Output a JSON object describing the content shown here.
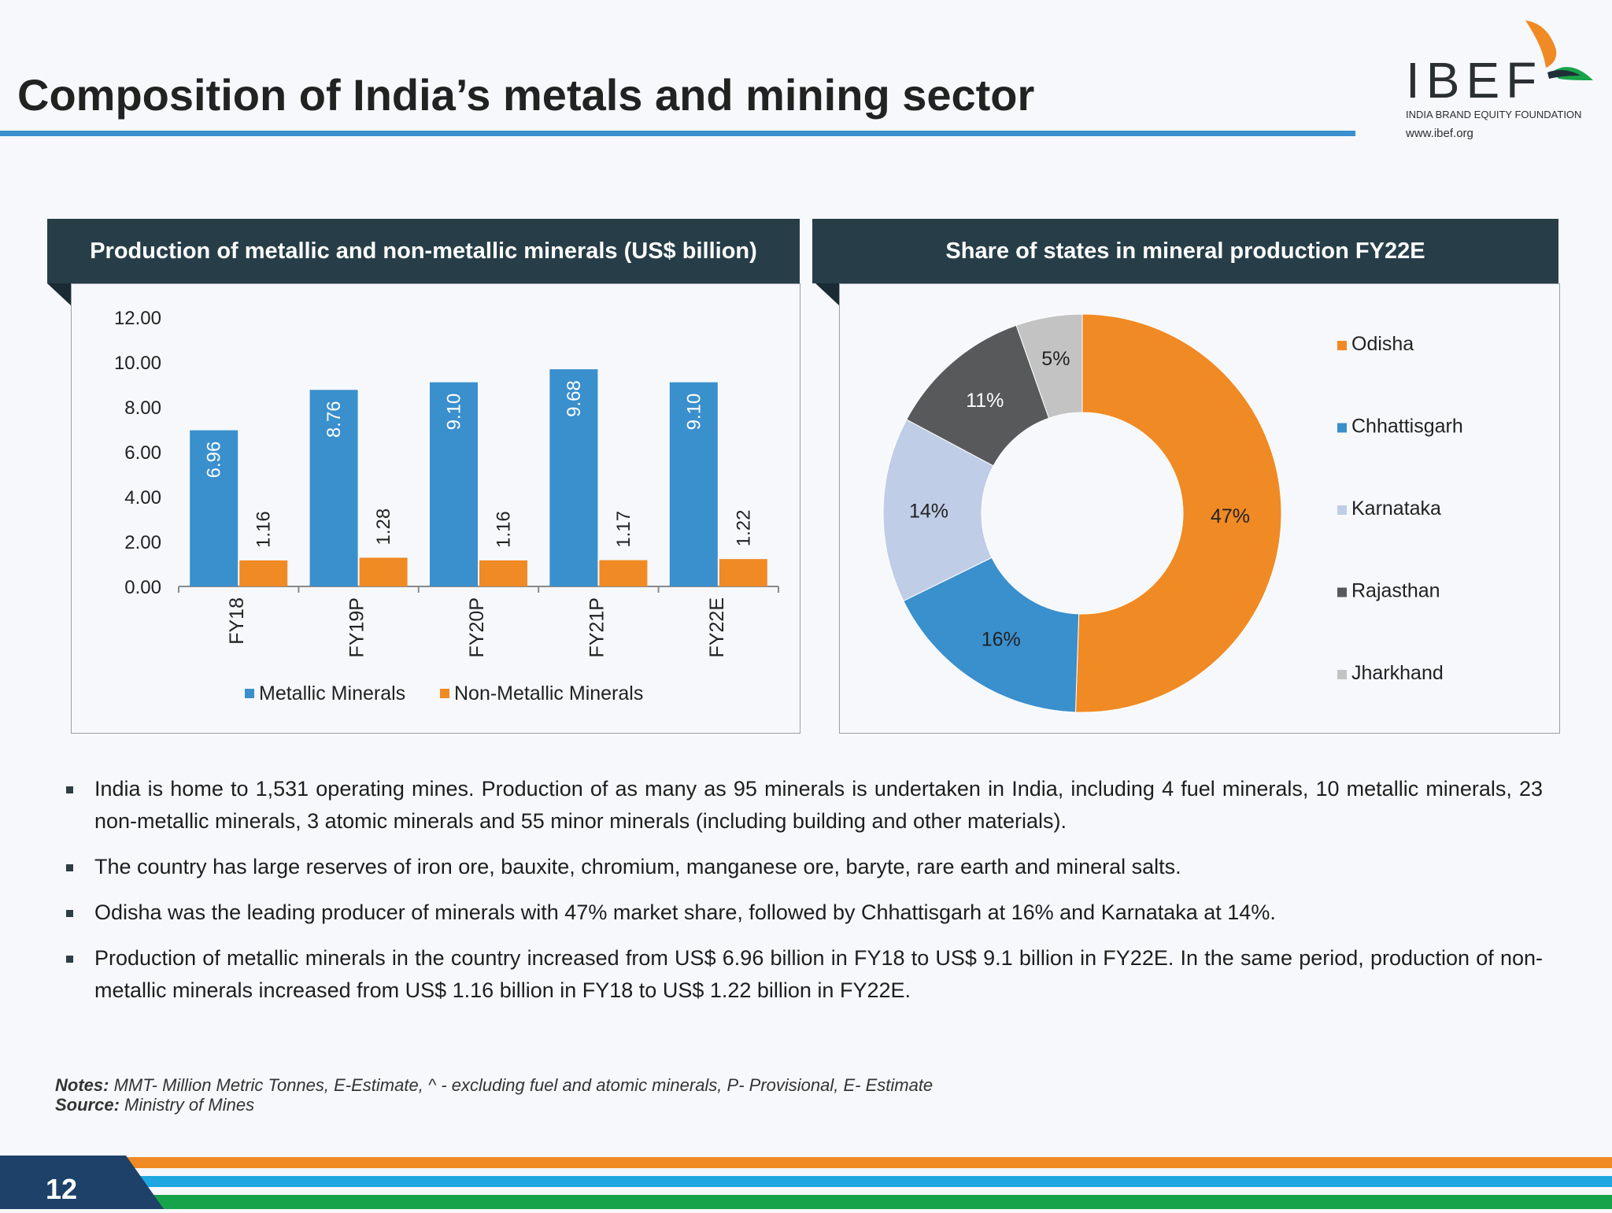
{
  "page": {
    "title": "Composition of India’s metals and mining sector",
    "page_number": "12"
  },
  "logo": {
    "name": "IBEF",
    "tagline": "INDIA BRAND EQUITY FOUNDATION",
    "url": "www.ibef.org"
  },
  "left_panel": {
    "title": "Production of metallic and non-metallic minerals (US$ billion)"
  },
  "right_panel": {
    "title": "Share of states in mineral production FY22E"
  },
  "chart_data": [
    {
      "type": "bar",
      "title": "Production of metallic and non-metallic minerals (US$ billion)",
      "categories": [
        "FY18",
        "FY19P",
        "FY20P",
        "FY21P",
        "FY22E"
      ],
      "series": [
        {
          "name": "Metallic Minerals",
          "values": [
            6.96,
            8.76,
            9.1,
            9.68,
            9.1
          ],
          "labels": [
            "6.96",
            "8.76",
            "9.10",
            "9.68",
            "9.10"
          ],
          "color": "#3a8fcd"
        },
        {
          "name": "Non-Metallic Minerals",
          "values": [
            1.16,
            1.28,
            1.16,
            1.17,
            1.22
          ],
          "labels": [
            "1.16",
            "1.28",
            "1.16",
            "1.17",
            "1.22"
          ],
          "color": "#f08a24"
        }
      ],
      "ylim": [
        0,
        12
      ],
      "yticks": [
        "0.00",
        "2.00",
        "4.00",
        "6.00",
        "8.00",
        "10.00",
        "12.00"
      ],
      "grid": false,
      "legend": "bottom"
    },
    {
      "type": "pie",
      "title": "Share of states in mineral production FY22E",
      "donut": true,
      "slices": [
        {
          "name": "Odisha",
          "value": 47,
          "label": "47%",
          "color": "#f08a24"
        },
        {
          "name": "Chhattisgarh",
          "value": 16,
          "label": "16%",
          "color": "#3a8fcd"
        },
        {
          "name": "Karnataka",
          "value": 14,
          "label": "14%",
          "color": "#bfcde6"
        },
        {
          "name": "Rajasthan",
          "value": 11,
          "label": "11%",
          "color": "#58595b"
        },
        {
          "name": "Jharkhand",
          "value": 5,
          "label": "5%",
          "color": "#c3c3c3"
        }
      ],
      "legend": "right"
    }
  ],
  "bullets": [
    "India is home to 1,531 operating mines. Production of as many as 95 minerals is undertaken in India, including 4 fuel minerals, 10 metallic minerals, 23 non-metallic minerals, 3 atomic minerals and 55 minor minerals (including building and other materials).",
    "The country has large reserves of iron ore, bauxite, chromium, manganese ore, baryte, rare earth and mineral salts.",
    "Odisha was the leading producer of minerals with 47% market share, followed by Chhattisgarh at 16% and Karnataka at 14%.",
    "Production of metallic minerals in the country increased from US$ 6.96 billion in FY18 to US$ 9.1 billion in FY22E. In the same period, production of non-metallic minerals increased from US$ 1.16 billion in FY18 to US$ 1.22 billion in FY22E."
  ],
  "notes": {
    "notes_label": "Notes:",
    "notes_text": " MMT- Million Metric Tonnes, E-Estimate, ^ - excluding fuel and atomic minerals, P- Provisional, E- Estimate",
    "source_label": "Source:",
    "source_text": " Ministry of Mines"
  },
  "footer": {
    "stripe_colors": [
      "#f08a24",
      "#ffffff",
      "#1ea7e0",
      "#ffffff",
      "#17a34a"
    ],
    "badge_color": "#1d4168"
  }
}
